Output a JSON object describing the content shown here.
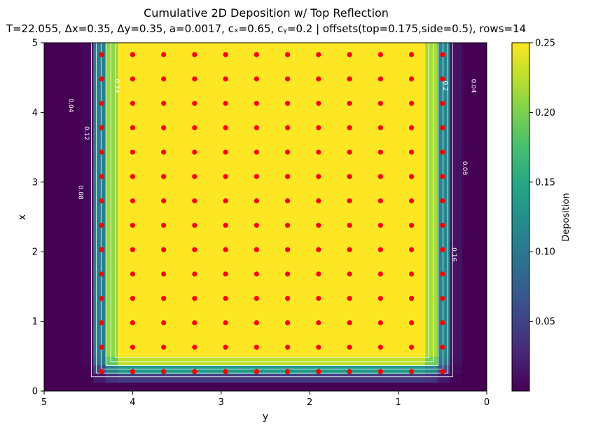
{
  "chart_data": {
    "type": "heatmap",
    "title": "Cumulative 2D Deposition w/ Top Reflection",
    "subtitle": "T=22.055, Δx=0.35, Δy=0.35, a=0.0017, cₓ=0.65, cᵧ=0.2 | offsets(top=0.175,side=0.5), rows=14",
    "xlabel": "y",
    "ylabel": "x",
    "x_axis": {
      "range": [
        5,
        0
      ],
      "ticks": [
        5,
        4,
        3,
        2,
        1,
        0
      ],
      "tick_labels": [
        "5",
        "4",
        "3",
        "2",
        "1",
        "0"
      ]
    },
    "y_axis": {
      "range": [
        0,
        5
      ],
      "ticks": [
        0,
        1,
        2,
        3,
        4,
        5
      ],
      "tick_labels": [
        "0",
        "1",
        "2",
        "3",
        "4",
        "5"
      ]
    },
    "colormap": "viridis",
    "colors": {
      "low": "#440154",
      "high": "#fde725",
      "points": "#ff0000",
      "contours": "#ffffff"
    },
    "colorbar": {
      "label": "Deposition",
      "range": [
        0.0,
        0.25
      ],
      "ticks": [
        0.05,
        0.1,
        0.15,
        0.2,
        0.25
      ],
      "tick_labels": [
        "0.05",
        "0.10",
        "0.15",
        "0.20",
        "0.25"
      ]
    },
    "field_model": {
      "side_edge_y_low": 0.5,
      "side_edge_y_high": 4.35,
      "bottom_edge_x": 1.3,
      "max_value": 0.25
    },
    "contour_levels": [
      0.04,
      0.08,
      0.12,
      0.16,
      0.2,
      0.24
    ],
    "contour_labels": [
      {
        "text": "0.04",
        "y": 4.72,
        "x": 4.1
      },
      {
        "text": "0.12",
        "y": 4.54,
        "x": 3.7
      },
      {
        "text": "0.08",
        "y": 4.61,
        "x": 2.85
      },
      {
        "text": "0.24",
        "y": 4.2,
        "x": 4.38
      },
      {
        "text": "0.2",
        "y": 0.49,
        "x": 4.38
      },
      {
        "text": "0.04",
        "y": 0.17,
        "x": 4.38
      },
      {
        "text": "0.08",
        "y": 0.27,
        "x": 3.2
      },
      {
        "text": "0.16",
        "y": 0.39,
        "x": 1.96
      }
    ],
    "source_points": {
      "y": [
        4.35,
        4.0,
        3.65,
        3.3,
        2.95,
        2.6,
        2.25,
        1.9,
        1.55,
        1.2,
        0.85,
        0.5
      ],
      "x": [
        0.28,
        0.63,
        0.98,
        1.33,
        1.68,
        2.03,
        2.38,
        2.73,
        3.08,
        3.43,
        3.78,
        4.13,
        4.48,
        4.83
      ]
    },
    "grid": false
  }
}
